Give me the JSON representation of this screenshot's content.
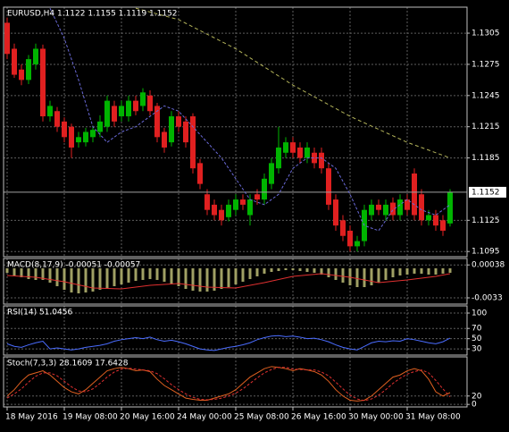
{
  "chart_data": [
    {
      "type": "candlestick",
      "title": "EURUSD,H4 1.1122 1.1155 1.1119 1.1152",
      "grid": true,
      "up_color": "#00b400",
      "down_color": "#e02020",
      "categories": [
        "18 May 2016",
        null,
        null,
        null,
        null,
        null,
        null,
        null,
        "19 May 08:00",
        null,
        null,
        null,
        null,
        null,
        null,
        null,
        "20 May 16:00",
        null,
        null,
        null,
        null,
        null,
        null,
        null,
        "24 May 00:00",
        null,
        null,
        null,
        null,
        null,
        null,
        null,
        "25 May 08:00",
        null,
        null,
        null,
        null,
        null,
        null,
        null,
        "26 May 16:00",
        null,
        null,
        null,
        null,
        null,
        null,
        null,
        "30 May 00:00",
        null,
        null,
        null,
        null,
        null,
        null,
        null,
        "31 May 08:00",
        null,
        null,
        null,
        null,
        null,
        null
      ],
      "open": [
        1.1315,
        1.129,
        1.127,
        1.126,
        1.1275,
        1.129,
        1.1225,
        1.123,
        1.122,
        1.1215,
        1.12,
        1.12,
        1.1205,
        1.121,
        1.1215,
        1.1235,
        1.1225,
        1.1225,
        1.124,
        1.1235,
        1.1245,
        1.1235,
        1.121,
        1.12,
        1.1225,
        1.122,
        1.1225,
        1.118,
        1.115,
        1.114,
        1.1135,
        1.1128,
        1.1135,
        1.1145,
        1.113,
        1.115,
        1.1145,
        1.116,
        1.1175,
        1.119,
        1.12,
        1.1195,
        1.1185,
        1.119,
        1.119,
        1.1175,
        1.1145,
        1.1125,
        1.1115,
        1.11,
        1.1105,
        1.113,
        1.114,
        1.113,
        1.1142,
        1.113,
        1.1145,
        1.117,
        1.115,
        1.1125,
        1.113,
        1.1125,
        1.1122
      ],
      "high": [
        1.132,
        1.1295,
        1.1275,
        1.1284,
        1.1295,
        1.1294,
        1.124,
        1.1234,
        1.1224,
        1.1218,
        1.121,
        1.1214,
        1.1216,
        1.1226,
        1.1245,
        1.124,
        1.124,
        1.1245,
        1.1245,
        1.1252,
        1.125,
        1.1238,
        1.1214,
        1.123,
        1.123,
        1.1225,
        1.1228,
        1.1184,
        1.1155,
        1.1145,
        1.114,
        1.1145,
        1.115,
        1.115,
        1.115,
        1.1155,
        1.117,
        1.1185,
        1.1215,
        1.1205,
        1.1205,
        1.12,
        1.12,
        1.1195,
        1.1195,
        1.118,
        1.115,
        1.113,
        1.112,
        1.111,
        1.114,
        1.1145,
        1.1145,
        1.1145,
        1.1147,
        1.115,
        1.115,
        1.1175,
        1.1155,
        1.1135,
        1.1135,
        1.113,
        1.1155
      ],
      "low": [
        1.128,
        1.1262,
        1.1255,
        1.1256,
        1.127,
        1.122,
        1.122,
        1.121,
        1.12,
        1.1185,
        1.1195,
        1.1196,
        1.12,
        1.1205,
        1.121,
        1.1215,
        1.122,
        1.122,
        1.1226,
        1.123,
        1.1226,
        1.12,
        1.119,
        1.1196,
        1.121,
        1.1195,
        1.117,
        1.1155,
        1.113,
        1.1125,
        1.112,
        1.1124,
        1.113,
        1.1135,
        1.112,
        1.114,
        1.114,
        1.1155,
        1.117,
        1.1185,
        1.1185,
        1.118,
        1.118,
        1.1175,
        1.117,
        1.1135,
        1.1115,
        1.1105,
        1.1095,
        1.1095,
        1.11,
        1.1125,
        1.113,
        1.1125,
        1.1125,
        1.1125,
        1.113,
        1.1125,
        1.112,
        1.112,
        1.1115,
        1.111,
        1.1119
      ],
      "close": [
        1.1285,
        1.1265,
        1.126,
        1.128,
        1.129,
        1.1225,
        1.1235,
        1.1215,
        1.1205,
        1.1195,
        1.1205,
        1.121,
        1.1212,
        1.122,
        1.124,
        1.122,
        1.1235,
        1.124,
        1.123,
        1.1248,
        1.123,
        1.1205,
        1.1195,
        1.1225,
        1.1215,
        1.12,
        1.1175,
        1.116,
        1.1135,
        1.113,
        1.1125,
        1.114,
        1.1145,
        1.114,
        1.1145,
        1.1145,
        1.1165,
        1.118,
        1.1195,
        1.12,
        1.119,
        1.1185,
        1.1195,
        1.118,
        1.1175,
        1.114,
        1.112,
        1.111,
        1.11,
        1.1105,
        1.1135,
        1.114,
        1.1135,
        1.114,
        1.113,
        1.1145,
        1.1135,
        1.113,
        1.1125,
        1.113,
        1.112,
        1.1115,
        1.1152
      ],
      "series": [
        {
          "color": "#6a6ad8",
          "dash": "3 2",
          "x": [
            6,
            8,
            10,
            12,
            14,
            16,
            18,
            20,
            22,
            24,
            26,
            28,
            30,
            32,
            34,
            36,
            38,
            40,
            42,
            44,
            46,
            48,
            50,
            52,
            54,
            56,
            58,
            60,
            62
          ],
          "values": [
            1.1329,
            1.13,
            1.126,
            1.1215,
            1.12,
            1.121,
            1.1215,
            1.1225,
            1.1235,
            1.123,
            1.1215,
            1.12,
            1.1185,
            1.1165,
            1.1145,
            1.114,
            1.115,
            1.1175,
            1.1185,
            1.1185,
            1.1175,
            1.115,
            1.112,
            1.1115,
            1.1135,
            1.1145,
            1.1135,
            1.113,
            1.114
          ]
        },
        {
          "color": "#b4b45a",
          "dash": "4 3",
          "x": [
            18,
            24,
            32,
            40,
            48,
            56,
            62
          ],
          "values": [
            1.1329,
            1.1318,
            1.129,
            1.1255,
            1.1225,
            1.12,
            1.1185
          ]
        }
      ],
      "last_price": 1.1152,
      "ylim": [
        1.109,
        1.133
      ],
      "yticks": [
        1.1305,
        1.1275,
        1.1245,
        1.1215,
        1.1185,
        1.1125,
        1.1095
      ]
    },
    {
      "type": "bar",
      "title": "MACD(8,17,9) -0.00051 -0.00057",
      "color": "#a0a064",
      "grid": true,
      "values": [
        -0.0005,
        -0.0008,
        -0.001,
        -0.0012,
        -0.0013,
        -0.0013,
        -0.0016,
        -0.002,
        -0.0024,
        -0.0027,
        -0.0028,
        -0.0027,
        -0.0026,
        -0.0024,
        -0.0022,
        -0.002,
        -0.0018,
        -0.0016,
        -0.0014,
        -0.0013,
        -0.0012,
        -0.0013,
        -0.0015,
        -0.0017,
        -0.002,
        -0.0023,
        -0.0025,
        -0.0026,
        -0.0026,
        -0.0025,
        -0.0023,
        -0.0021,
        -0.0018,
        -0.0015,
        -0.0012,
        -0.0009,
        -0.0006,
        -0.0004,
        -0.0003,
        -0.0002,
        -0.0002,
        -0.0003,
        -0.0004,
        -0.0005,
        -0.0007,
        -0.001,
        -0.0013,
        -0.0016,
        -0.0019,
        -0.0021,
        -0.0021,
        -0.0019,
        -0.0016,
        -0.0013,
        -0.001,
        -0.0008,
        -0.0007,
        -0.0006,
        -0.0006,
        -0.0007,
        -0.0007,
        -0.0006,
        -0.0005
      ],
      "series": [
        {
          "color": "#e03030",
          "x": [
            0,
            4,
            8,
            12,
            16,
            20,
            24,
            28,
            32,
            36,
            40,
            44,
            48,
            52,
            56,
            60,
            62
          ],
          "values": [
            -0.0008,
            -0.001,
            -0.0015,
            -0.0022,
            -0.0023,
            -0.0019,
            -0.0017,
            -0.0021,
            -0.0022,
            -0.0016,
            -0.0009,
            -0.0006,
            -0.001,
            -0.0016,
            -0.0013,
            -0.0009,
            -0.0006
          ]
        }
      ],
      "ylim": [
        -0.004,
        0.0011
      ],
      "yticks": [
        0.00038,
        -0.0033
      ]
    },
    {
      "type": "line",
      "title": "RSI(14) 51.0456",
      "grid": true,
      "series": [
        {
          "color": "#4a6cff",
          "values": [
            40,
            35,
            33,
            38,
            42,
            45,
            30,
            32,
            30,
            28,
            30,
            33,
            35,
            37,
            40,
            45,
            48,
            50,
            52,
            50,
            53,
            48,
            45,
            47,
            44,
            40,
            35,
            30,
            28,
            27,
            30,
            33,
            35,
            38,
            42,
            48,
            52,
            55,
            56,
            54,
            55,
            53,
            50,
            51,
            48,
            44,
            38,
            33,
            30,
            28,
            35,
            42,
            45,
            44,
            46,
            45,
            50,
            48,
            45,
            42,
            40,
            44,
            51
          ]
        }
      ],
      "ylim": [
        18,
        114
      ],
      "yticks": [
        100,
        70,
        50,
        30
      ]
    },
    {
      "type": "line",
      "title": "Stoch(7,3,3) 28.1609 17.6428",
      "grid": true,
      "series": [
        {
          "color": "#e06020",
          "values": [
            20,
            35,
            55,
            70,
            75,
            80,
            70,
            55,
            40,
            30,
            25,
            35,
            50,
            65,
            80,
            85,
            88,
            85,
            80,
            82,
            78,
            60,
            45,
            35,
            25,
            15,
            12,
            10,
            10,
            15,
            20,
            25,
            35,
            50,
            65,
            75,
            85,
            90,
            88,
            85,
            80,
            85,
            82,
            78,
            70,
            55,
            35,
            20,
            10,
            8,
            10,
            20,
            35,
            50,
            65,
            70,
            80,
            85,
            80,
            60,
            30,
            20,
            28
          ]
        },
        {
          "color": "#e03030",
          "dash": "3 2",
          "values": [
            15,
            25,
            37,
            53,
            67,
            75,
            75,
            68,
            55,
            42,
            32,
            30,
            37,
            50,
            65,
            77,
            84,
            86,
            84,
            82,
            80,
            73,
            61,
            47,
            35,
            25,
            17,
            12,
            11,
            12,
            15,
            20,
            27,
            37,
            50,
            63,
            75,
            83,
            88,
            88,
            84,
            83,
            82,
            82,
            77,
            68,
            53,
            37,
            22,
            13,
            9,
            13,
            22,
            35,
            50,
            62,
            72,
            78,
            82,
            75,
            57,
            37,
            18
          ]
        }
      ],
      "ylim": [
        -6,
        113
      ],
      "yticks": [
        20,
        0
      ]
    }
  ]
}
